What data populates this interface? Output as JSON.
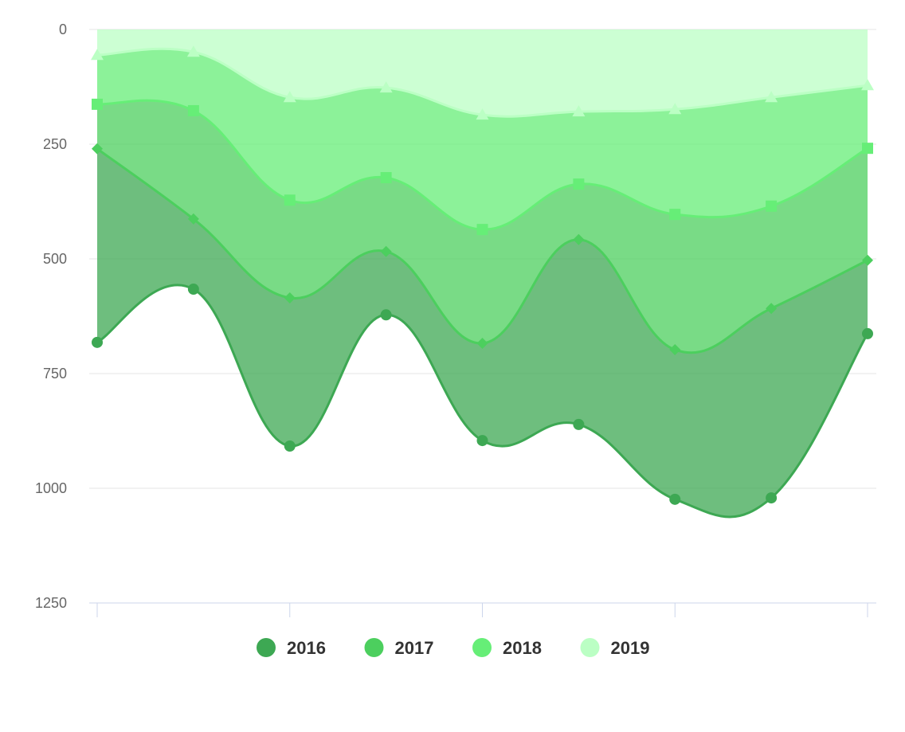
{
  "chart_data": {
    "type": "area",
    "stacking": "normal",
    "y_axis_reversed": true,
    "ylim": [
      0,
      1250
    ],
    "yticks": [
      "0",
      "250",
      "500",
      "750",
      "1000",
      "1250"
    ],
    "grid": true,
    "legend_position": "bottom",
    "x_count": 9,
    "series": [
      {
        "name": "2016",
        "color": "#3da853",
        "marker": "circle",
        "values": [
          422,
          153,
          323,
          138,
          212,
          403,
          326,
          413,
          160
        ]
      },
      {
        "name": "2017",
        "color": "#4ccf5e",
        "marker": "diamond",
        "values": [
          97,
          236,
          213,
          161,
          248,
          121,
          295,
          223,
          244
        ]
      },
      {
        "name": "2018",
        "color": "#66ee77",
        "marker": "square",
        "values": [
          107,
          128,
          224,
          196,
          250,
          158,
          229,
          237,
          137
        ]
      },
      {
        "name": "2019",
        "color": "#bbffc4",
        "marker": "triangle",
        "values": [
          56,
          49,
          148,
          127,
          186,
          179,
          174,
          148,
          122
        ]
      }
    ]
  }
}
